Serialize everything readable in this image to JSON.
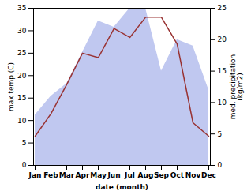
{
  "chart_data": {
    "type": "line",
    "xlabel": "date (month)",
    "ylabel": "max temp (C)",
    "y2label": "med. precipitation\n(kg/m2)",
    "categories": [
      "Jan",
      "Feb",
      "Mar",
      "Apr",
      "May",
      "Jun",
      "Jul",
      "Aug",
      "Sep",
      "Oct",
      "Nov",
      "Dec"
    ],
    "series": [
      {
        "type": "area",
        "axis": "y2",
        "color": "#c0c8f0",
        "values": [
          8,
          11,
          13,
          18,
          23,
          22,
          25,
          25,
          15,
          20,
          19,
          12
        ]
      },
      {
        "type": "line",
        "color": "#993333",
        "values": [
          6.5,
          11.5,
          18.0,
          25.0,
          24.0,
          30.5,
          28.5,
          33.0,
          33.0,
          27.0,
          9.5,
          6.5
        ]
      }
    ],
    "ylim": [
      0,
      35
    ],
    "yticks": [
      0,
      5,
      10,
      15,
      20,
      25,
      30,
      35
    ],
    "y2lim": [
      0,
      25
    ],
    "y2ticks": [
      0,
      5,
      10,
      15,
      20,
      25
    ],
    "grid": false
  }
}
